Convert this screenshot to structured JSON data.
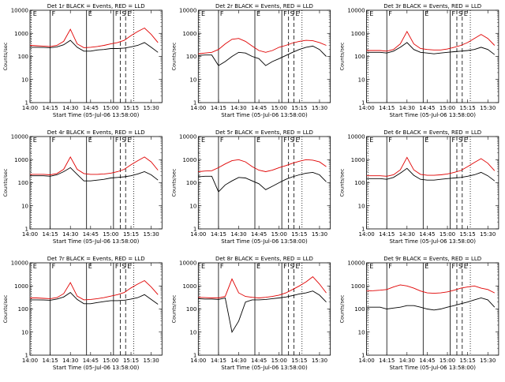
{
  "chart_data": {
    "type": "line",
    "layout": "3x3 grid",
    "y_scale": "log",
    "ylim": [
      1,
      10000
    ],
    "yticks": [
      "1",
      "10",
      "100",
      "1000",
      "10000"
    ],
    "xlim": [
      "14:00",
      "15:38"
    ],
    "xticks": [
      "14:00",
      "14:15",
      "14:30",
      "14:45",
      "15:00",
      "15:15",
      "15:30"
    ],
    "xlabel": "Start Time (05-Jul-06 13:58:00)",
    "ylabel": "Counts/sec",
    "grid": false,
    "series_colors": {
      "events": "#000000",
      "lld": "#e00000"
    },
    "markers": [
      {
        "label": "E",
        "time": "14:01",
        "style": "dotted"
      },
      {
        "label": "F",
        "time": "14:15",
        "style": "solid"
      },
      {
        "label": "E",
        "time": "14:42",
        "style": "solid"
      },
      {
        "label": "F",
        "time": "15:02",
        "style": "solid"
      },
      {
        "label": "S",
        "time": "15:07",
        "style": "dashed"
      },
      {
        "label": "E",
        "time": "15:11",
        "style": "dashed"
      },
      {
        "label": "",
        "time": "15:17",
        "style": "dotted"
      }
    ],
    "panels": [
      {
        "title": "Det 1r BLACK = Events, RED = LLD",
        "x": [
          "14:00",
          "14:05",
          "14:10",
          "14:15",
          "14:20",
          "14:25",
          "14:30",
          "14:35",
          "14:40",
          "14:45",
          "14:50",
          "14:55",
          "15:00",
          "15:05",
          "15:10",
          "15:15",
          "15:20",
          "15:25",
          "15:30",
          "15:35"
        ],
        "events": [
          250,
          250,
          245,
          240,
          260,
          320,
          500,
          250,
          170,
          170,
          190,
          200,
          220,
          220,
          230,
          260,
          300,
          400,
          250,
          150
        ],
        "lld": [
          300,
          290,
          280,
          270,
          300,
          450,
          1500,
          350,
          240,
          250,
          270,
          300,
          350,
          400,
          500,
          800,
          1200,
          1700,
          900,
          400
        ]
      },
      {
        "title": "Det 2r BLACK = Events, RED = LLD",
        "x": [
          "14:00",
          "14:05",
          "14:10",
          "14:15",
          "14:20",
          "14:25",
          "14:30",
          "14:35",
          "14:40",
          "14:45",
          "14:50",
          "14:55",
          "15:00",
          "15:05",
          "15:10",
          "15:15",
          "15:20",
          "15:25",
          "15:30",
          "15:35"
        ],
        "events": [
          110,
          115,
          115,
          40,
          60,
          100,
          150,
          140,
          100,
          80,
          40,
          60,
          80,
          110,
          150,
          200,
          250,
          280,
          200,
          100
        ],
        "lld": [
          130,
          140,
          150,
          200,
          350,
          550,
          600,
          450,
          280,
          180,
          150,
          180,
          250,
          300,
          380,
          450,
          500,
          480,
          400,
          300
        ]
      },
      {
        "title": "Det 3r BLACK = Events, RED = LLD",
        "x": [
          "14:00",
          "14:05",
          "14:10",
          "14:15",
          "14:20",
          "14:25",
          "14:30",
          "14:35",
          "14:40",
          "14:45",
          "14:50",
          "14:55",
          "15:00",
          "15:05",
          "15:10",
          "15:15",
          "15:20",
          "15:25",
          "15:30",
          "15:35"
        ],
        "events": [
          150,
          150,
          150,
          140,
          170,
          250,
          400,
          200,
          150,
          140,
          130,
          140,
          150,
          160,
          170,
          180,
          200,
          250,
          200,
          120
        ],
        "lld": [
          180,
          180,
          180,
          170,
          200,
          350,
          1200,
          350,
          220,
          200,
          190,
          190,
          210,
          250,
          300,
          400,
          600,
          900,
          600,
          300
        ]
      },
      {
        "title": "Det 4r BLACK = Events, RED = LLD",
        "x": [
          "14:00",
          "14:05",
          "14:10",
          "14:15",
          "14:20",
          "14:25",
          "14:30",
          "14:35",
          "14:40",
          "14:45",
          "14:50",
          "14:55",
          "15:00",
          "15:05",
          "15:10",
          "15:15",
          "15:20",
          "15:25",
          "15:30",
          "15:35"
        ],
        "events": [
          200,
          200,
          200,
          190,
          220,
          300,
          450,
          230,
          120,
          120,
          130,
          140,
          160,
          170,
          180,
          200,
          240,
          300,
          220,
          130
        ],
        "lld": [
          230,
          230,
          230,
          220,
          250,
          380,
          1300,
          380,
          250,
          230,
          230,
          240,
          260,
          300,
          380,
          600,
          900,
          1300,
          800,
          350
        ]
      },
      {
        "title": "Det 5r BLACK = Events, RED = LLD",
        "x": [
          "14:00",
          "14:05",
          "14:10",
          "14:15",
          "14:20",
          "14:25",
          "14:30",
          "14:35",
          "14:40",
          "14:45",
          "14:50",
          "14:55",
          "15:00",
          "15:05",
          "15:10",
          "15:15",
          "15:20",
          "15:25",
          "15:30",
          "15:35"
        ],
        "events": [
          180,
          190,
          190,
          40,
          80,
          120,
          170,
          160,
          120,
          90,
          50,
          70,
          100,
          140,
          180,
          220,
          260,
          280,
          220,
          110
        ],
        "lld": [
          300,
          320,
          330,
          450,
          650,
          900,
          1000,
          800,
          500,
          350,
          300,
          350,
          450,
          550,
          700,
          850,
          1000,
          950,
          800,
          500
        ]
      },
      {
        "title": "Det 6r BLACK = Events, RED = LLD",
        "x": [
          "14:00",
          "14:05",
          "14:10",
          "14:15",
          "14:20",
          "14:25",
          "14:30",
          "14:35",
          "14:40",
          "14:45",
          "14:50",
          "14:55",
          "15:00",
          "15:05",
          "15:10",
          "15:15",
          "15:20",
          "15:25",
          "15:30",
          "15:35"
        ],
        "events": [
          150,
          150,
          150,
          140,
          170,
          260,
          420,
          210,
          140,
          130,
          130,
          140,
          150,
          160,
          170,
          190,
          220,
          280,
          200,
          120
        ],
        "lld": [
          200,
          200,
          200,
          190,
          220,
          360,
          1250,
          360,
          230,
          210,
          210,
          220,
          240,
          280,
          340,
          500,
          750,
          1100,
          700,
          330
        ]
      },
      {
        "title": "Det 7r BLACK = Events, RED = LLD",
        "x": [
          "14:00",
          "14:05",
          "14:10",
          "14:15",
          "14:20",
          "14:25",
          "14:30",
          "14:35",
          "14:40",
          "14:45",
          "14:50",
          "14:55",
          "15:00",
          "15:05",
          "15:10",
          "15:15",
          "15:20",
          "15:25",
          "15:30",
          "15:35"
        ],
        "events": [
          250,
          250,
          245,
          240,
          270,
          330,
          520,
          260,
          170,
          170,
          190,
          210,
          230,
          230,
          240,
          270,
          310,
          420,
          260,
          160
        ],
        "lld": [
          300,
          300,
          290,
          280,
          310,
          460,
          1400,
          360,
          250,
          260,
          280,
          310,
          360,
          420,
          520,
          820,
          1200,
          1700,
          900,
          420
        ]
      },
      {
        "title": "Det 8r BLACK = Events, RED = LLD",
        "x": [
          "14:00",
          "14:05",
          "14:10",
          "14:15",
          "14:20",
          "14:25",
          "14:30",
          "14:35",
          "14:40",
          "14:45",
          "14:50",
          "14:55",
          "15:00",
          "15:05",
          "15:10",
          "15:15",
          "15:20",
          "15:25",
          "15:30",
          "15:35"
        ],
        "events": [
          280,
          270,
          270,
          260,
          300,
          10,
          30,
          200,
          250,
          250,
          260,
          280,
          300,
          330,
          380,
          450,
          500,
          600,
          400,
          200
        ],
        "lld": [
          320,
          310,
          300,
          300,
          350,
          2000,
          500,
          350,
          320,
          300,
          320,
          350,
          400,
          500,
          700,
          1000,
          1500,
          2500,
          1200,
          500
        ]
      },
      {
        "title": "Det 9r BLACK = Events, RED = LLD",
        "x": [
          "14:00",
          "14:05",
          "14:10",
          "14:15",
          "14:20",
          "14:25",
          "14:30",
          "14:35",
          "14:40",
          "14:45",
          "14:50",
          "14:55",
          "15:00",
          "15:05",
          "15:10",
          "15:15",
          "15:20",
          "15:25",
          "15:30",
          "15:35"
        ],
        "events": [
          120,
          120,
          120,
          100,
          110,
          120,
          140,
          140,
          120,
          100,
          90,
          100,
          120,
          140,
          170,
          200,
          250,
          300,
          250,
          120
        ],
        "lld": [
          600,
          620,
          650,
          700,
          900,
          1100,
          1000,
          800,
          600,
          500,
          480,
          500,
          550,
          650,
          800,
          900,
          1000,
          800,
          700,
          500
        ]
      }
    ]
  }
}
